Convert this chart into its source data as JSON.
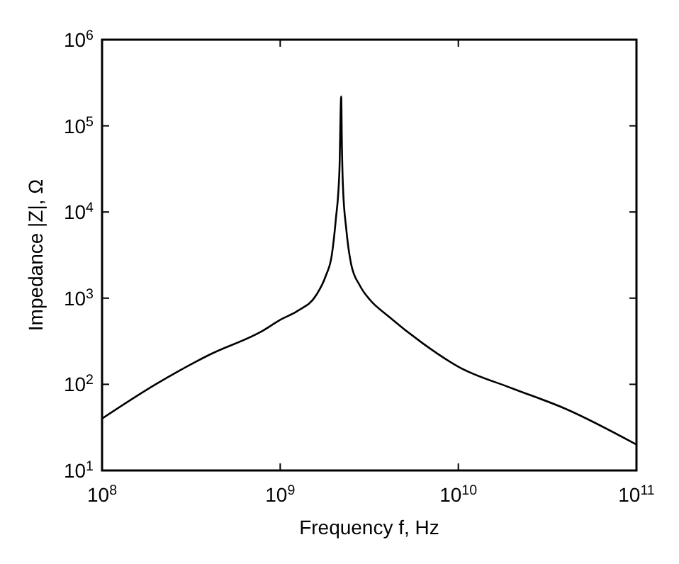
{
  "chart_data": {
    "type": "line",
    "xlabel": "Frequency f, Hz",
    "ylabel": "Impedance |Z|, Ω",
    "log": "xy",
    "grid": false,
    "marker": "none",
    "line_style": "solid",
    "xlim": [
      100000000.0,
      100000000000.0
    ],
    "ylim": [
      10,
      1000000.0
    ],
    "xticks": [
      {
        "value": 100000000.0,
        "label": "10$^{8}$"
      },
      {
        "value": 1000000000.0,
        "label": "10$^{9}$"
      },
      {
        "value": 10000000000.0,
        "label": "10$^{10}$"
      },
      {
        "value": 100000000000.0,
        "label": "10$^{11}$"
      }
    ],
    "yticks": [
      {
        "value": 10,
        "label": "10$^{1}$"
      },
      {
        "value": 100,
        "label": "10$^{2}$"
      },
      {
        "value": 1000,
        "label": "10$^{3}$"
      },
      {
        "value": 10000,
        "label": "10$^{4}$"
      },
      {
        "value": 100000,
        "label": "10$^{5}$"
      },
      {
        "value": 1000000,
        "label": "10$^{6}$"
      }
    ],
    "series": [
      {
        "color": "#000000",
        "x": [
          100000000.0,
          200000000.0,
          400000000.0,
          800000000.0,
          1000000000.0,
          1250000000.0,
          1600000000.0,
          1800000000.0,
          1950000000.0,
          2050000000.0,
          2150000000.0,
          2200000000.0,
          2220000000.0,
          2250000000.0,
          2350000000.0,
          2500000000.0,
          2800000000.0,
          3200000000.0,
          4000000000.0,
          6300000000.0,
          10000000000.0,
          20000000000.0,
          40000000000.0,
          100000000000.0
        ],
        "values": [
          40,
          100,
          220,
          420,
          560,
          710,
          1100,
          1800,
          3200,
          8000,
          30000,
          220000,
          60000,
          20000,
          6300,
          2500,
          1400,
          950,
          630,
          300,
          160,
          90,
          52,
          20
        ]
      }
    ]
  }
}
